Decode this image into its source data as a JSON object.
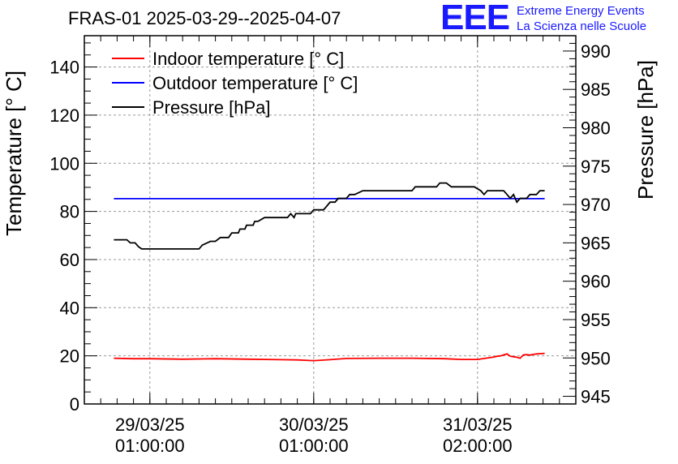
{
  "header": {
    "title": "FRAS-01 2025-03-29--2025-04-07",
    "logo_letters": "EEE",
    "logo_line1": "Extreme Energy Events",
    "logo_line2": "La Scienza nelle Scuole"
  },
  "chart_data": {
    "type": "line",
    "title": "FRAS-01 2025-03-29--2025-04-07",
    "ylabel_left": "Temperature [° C]",
    "ylabel_right": "Pressure [hPa]",
    "xlabel": "",
    "x_ticks": [
      {
        "line1": "29/03/25",
        "line2": "01:00:00",
        "t": 0.2
      },
      {
        "line1": "30/03/25",
        "line2": "01:00:00",
        "t": 1.2
      },
      {
        "line1": "31/03/25",
        "line2": "02:00:00",
        "t": 2.2
      }
    ],
    "xlim": [
      -0.2,
      2.8
    ],
    "ylim_left": [
      0,
      153
    ],
    "ylim_right": [
      944,
      992
    ],
    "left_ticks": [
      0,
      20,
      40,
      60,
      80,
      100,
      120,
      140
    ],
    "right_ticks": [
      945,
      950,
      955,
      960,
      965,
      970,
      975,
      980,
      985,
      990
    ],
    "grid": true,
    "legend_position": "top-left",
    "legend": [
      {
        "name": "Indoor temperature [° C]",
        "color": "#ff0000"
      },
      {
        "name": "Outdoor temperature [° C]",
        "color": "#0000ff"
      },
      {
        "name": "Pressure [hPa]",
        "color": "#000000"
      }
    ],
    "series": [
      {
        "name": "Indoor temperature [° C]",
        "axis": "left",
        "color": "#ff0000",
        "x": [
          -0.02,
          0.1,
          0.2,
          0.4,
          0.6,
          0.8,
          1.0,
          1.1,
          1.2,
          1.3,
          1.4,
          1.6,
          1.8,
          2.0,
          2.1,
          2.2,
          2.25,
          2.3,
          2.32,
          2.34,
          2.36,
          2.38,
          2.4,
          2.42,
          2.44,
          2.46,
          2.48,
          2.5,
          2.52,
          2.54,
          2.56,
          2.58,
          2.61
        ],
        "y": [
          19.0,
          18.8,
          18.8,
          18.6,
          18.8,
          18.6,
          18.4,
          18.3,
          18.0,
          18.4,
          18.9,
          19.0,
          19.0,
          18.8,
          18.5,
          18.5,
          19.0,
          19.5,
          19.8,
          20.0,
          20.4,
          20.8,
          19.8,
          19.6,
          19.4,
          19.0,
          20.4,
          20.5,
          20.3,
          20.6,
          20.8,
          20.9,
          21.0
        ]
      },
      {
        "name": "Outdoor temperature [° C]",
        "axis": "left",
        "color": "#0000ff",
        "x": [
          -0.02,
          2.61
        ],
        "y": [
          85.3,
          85.3
        ]
      },
      {
        "name": "Pressure [hPa]",
        "axis": "right",
        "color": "#000000",
        "x": [
          -0.02,
          0.06,
          0.08,
          0.11,
          0.13,
          0.15,
          0.5,
          0.52,
          0.57,
          0.6,
          0.63,
          0.68,
          0.7,
          0.74,
          0.75,
          0.78,
          0.79,
          0.83,
          0.84,
          0.86,
          0.9,
          0.92,
          1.04,
          1.06,
          1.08,
          1.09,
          1.18,
          1.2,
          1.26,
          1.28,
          1.3,
          1.33,
          1.35,
          1.4,
          1.42,
          1.45,
          1.5,
          1.52,
          1.59,
          1.6,
          1.8,
          1.82,
          1.95,
          1.97,
          2.01,
          2.04,
          2.18,
          2.22,
          2.24,
          2.26,
          2.36,
          2.38,
          2.4,
          2.42,
          2.44,
          2.46,
          2.5,
          2.52,
          2.54,
          2.56,
          2.58,
          2.61
        ],
        "y": [
          965.4,
          965.4,
          965.0,
          965.0,
          964.5,
          964.2,
          964.2,
          964.7,
          965.2,
          965.2,
          965.7,
          965.7,
          966.3,
          966.3,
          966.8,
          966.8,
          967.3,
          967.3,
          967.8,
          967.8,
          968.3,
          968.3,
          968.3,
          968.8,
          968.3,
          968.8,
          968.8,
          969.3,
          969.3,
          969.8,
          970.3,
          970.3,
          970.8,
          970.8,
          971.3,
          971.3,
          971.8,
          971.8,
          971.8,
          971.8,
          971.8,
          972.3,
          972.3,
          972.8,
          972.8,
          972.3,
          972.3,
          971.8,
          971.3,
          971.8,
          971.8,
          971.3,
          970.8,
          971.3,
          970.3,
          970.8,
          970.8,
          971.3,
          971.3,
          971.3,
          971.8,
          971.8
        ]
      }
    ]
  }
}
